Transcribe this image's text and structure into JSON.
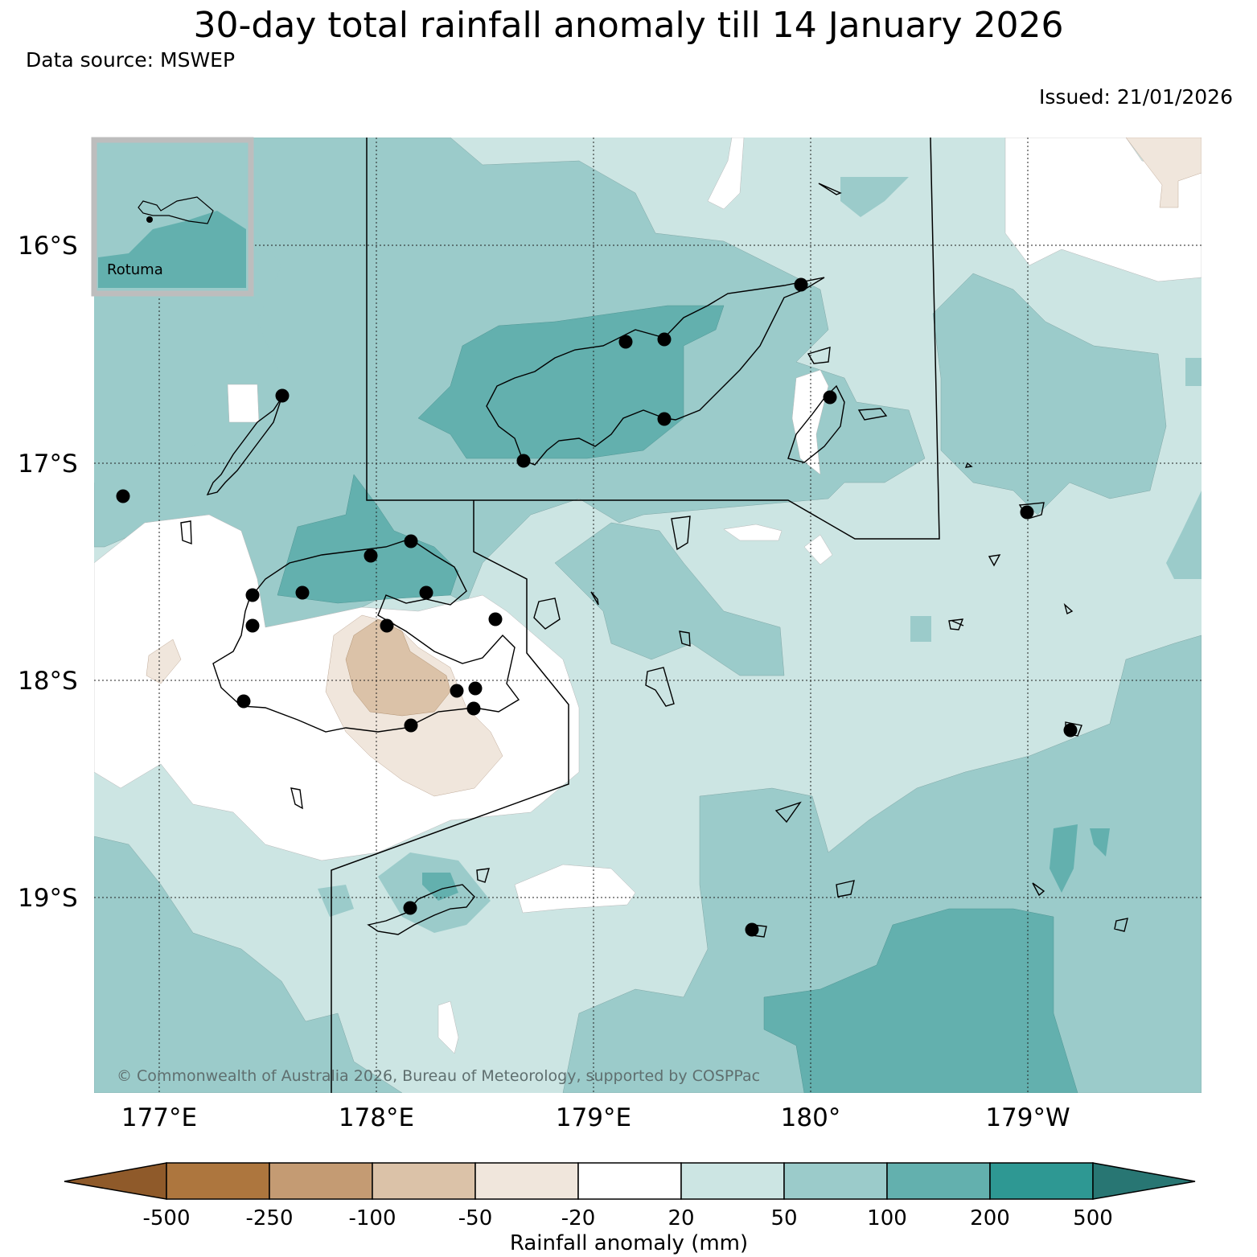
{
  "title": "30-day total rainfall anomaly till 14 January 2026",
  "data_source": "Data source: MSWEP",
  "issued": "Issued: 21/01/2026",
  "copyright": "© Commonwealth of Australia 2026, Bureau of Meteorology, supported by COSPPac",
  "inset": {
    "label": "Rotuma"
  },
  "latitude_labels": [
    "16°S",
    "17°S",
    "18°S",
    "19°S"
  ],
  "longitude_labels": [
    "177°E",
    "178°E",
    "179°E",
    "180°",
    "179°W"
  ],
  "colorbar": {
    "title": "Rainfall anomaly (mm)",
    "tick_labels": [
      "-500",
      "-250",
      "-100",
      "-50",
      "-20",
      "20",
      "50",
      "100",
      "200",
      "500"
    ],
    "colors": [
      "#8f5a2a",
      "#ad763e",
      "#c49b73",
      "#dbc2a8",
      "#f0e6dc",
      "#ffffff",
      "#cce5e3",
      "#9bcbca",
      "#63b0ae",
      "#2e9893",
      "#287673"
    ]
  },
  "legend_colors": {
    "n50_n20": "#f0e6dc",
    "n100_n50": "#dbc2a8",
    "p20_p50": "#cce5e3",
    "p50_p100": "#9bcbca",
    "p100_p200": "#63b0ae"
  }
}
